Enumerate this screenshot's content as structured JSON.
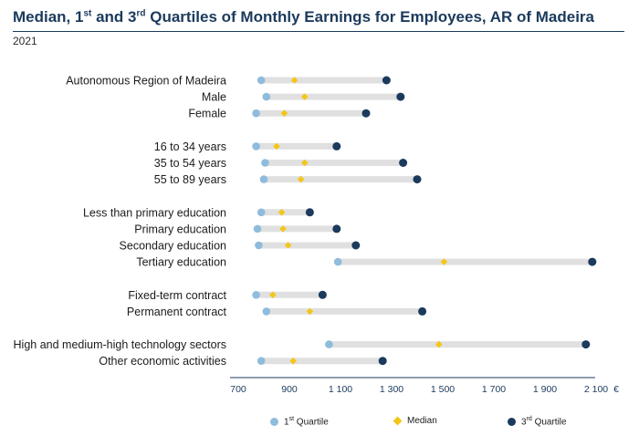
{
  "title": {
    "part1": "Median, 1",
    "sup1": "st",
    "part2": " and 3",
    "sup2": "rd",
    "part3": " Quartiles of Monthly Earnings for Employees, AR of Madeira"
  },
  "subtitle": "2021",
  "colors": {
    "q1": "#8fbcdc",
    "median": "#f5c518",
    "q3": "#1b3a5c",
    "range": "#e0e0e0",
    "axis": "#1b3a5c"
  },
  "legend": {
    "q1": {
      "main": "1",
      "sup": "st",
      "rest": " Quartile"
    },
    "median": {
      "main": "Median"
    },
    "q3": {
      "main": "3",
      "sup": "rd",
      "rest": " Quartile"
    }
  },
  "chart_data": {
    "type": "dumbbell",
    "orientation": "horizontal",
    "x_range": [
      700,
      2100
    ],
    "x_ticks": [
      700,
      900,
      1100,
      1300,
      1500,
      1700,
      1900,
      2100
    ],
    "x_tick_labels": [
      "700",
      "900",
      "1 100",
      "1 300",
      "1 500",
      "1 700",
      "1 900",
      "2 100"
    ],
    "x_unit": "€",
    "series_names": [
      "1st Quartile",
      "Median",
      "3rd Quartile"
    ],
    "groups": [
      {
        "rows": [
          {
            "label": "Autonomous Region of Madeira",
            "q1": 790,
            "median": 920,
            "q3": 1280
          },
          {
            "label": "Male",
            "q1": 810,
            "median": 960,
            "q3": 1335
          },
          {
            "label": "Female",
            "q1": 770,
            "median": 880,
            "q3": 1200
          }
        ]
      },
      {
        "rows": [
          {
            "label": "16 to 34 years",
            "q1": 770,
            "median": 850,
            "q3": 1085
          },
          {
            "label": "35 to 54 years",
            "q1": 805,
            "median": 960,
            "q3": 1345
          },
          {
            "label": "55 to 89 years",
            "q1": 800,
            "median": 945,
            "q3": 1400
          }
        ]
      },
      {
        "rows": [
          {
            "label": "Less than primary education",
            "q1": 790,
            "median": 870,
            "q3": 980
          },
          {
            "label": "Primary education",
            "q1": 775,
            "median": 875,
            "q3": 1085
          },
          {
            "label": "Secondary education",
            "q1": 780,
            "median": 895,
            "q3": 1160
          },
          {
            "label": "Tertiary education",
            "q1": 1090,
            "median": 1505,
            "q3": 2085
          }
        ]
      },
      {
        "rows": [
          {
            "label": "Fixed-term contract",
            "q1": 770,
            "median": 835,
            "q3": 1030
          },
          {
            "label": "Permanent contract",
            "q1": 810,
            "median": 980,
            "q3": 1420
          }
        ]
      },
      {
        "rows": [
          {
            "label": "High and medium-high technology sectors",
            "q1": 1055,
            "median": 1485,
            "q3": 2060
          },
          {
            "label": "Other economic activities",
            "q1": 790,
            "median": 915,
            "q3": 1265
          }
        ]
      }
    ]
  }
}
